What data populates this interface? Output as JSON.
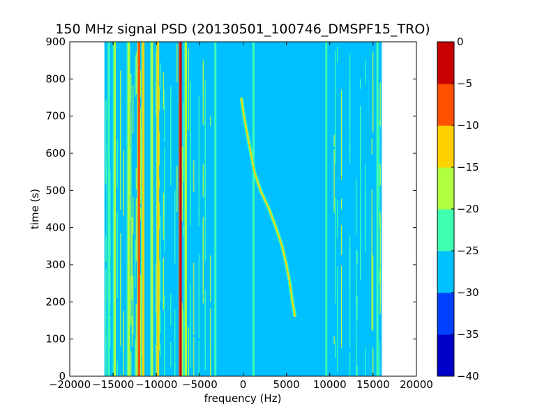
{
  "chart_data": {
    "type": "heatmap",
    "title": "150 MHz signal PSD (20130501_100746_DMSPF15_TRO)",
    "xlabel": "frequency (Hz)",
    "ylabel": "time (s)",
    "xlim": [
      -20000,
      20000
    ],
    "ylim": [
      0,
      900
    ],
    "x_ticks": [
      -20000,
      -15000,
      -10000,
      -5000,
      0,
      5000,
      10000,
      15000,
      20000
    ],
    "y_ticks": [
      0,
      100,
      200,
      300,
      400,
      500,
      600,
      700,
      800,
      900
    ],
    "x_tick_labels": [
      "−20000",
      "−15000",
      "−10000",
      "−5000",
      "0",
      "5000",
      "10000",
      "15000",
      "20000"
    ],
    "y_tick_labels": [
      "0",
      "100",
      "200",
      "300",
      "400",
      "500",
      "600",
      "700",
      "800",
      "900"
    ],
    "colorbar": {
      "levels": [
        -40,
        -35,
        -30,
        -25,
        -20,
        -15,
        -10,
        -5,
        0
      ],
      "tick_labels": [
        "−40",
        "−35",
        "−30",
        "−25",
        "−20",
        "−15",
        "−10",
        "−5",
        "0"
      ],
      "colors": [
        "#0000c8",
        "#0040ff",
        "#00c0ff",
        "#40ffb0",
        "#b0ff40",
        "#ffd000",
        "#ff5000",
        "#c80000"
      ]
    },
    "data_region": {
      "x_range": [
        -16000,
        16000
      ],
      "t_range": [
        0,
        900
      ],
      "background_level": -27.5
    },
    "bands": [
      {
        "x_range": [
          -16000,
          -3000
        ],
        "description": "noisy multi-line band",
        "dominant_levels": [
          -27.5,
          -22.5,
          -17.5
        ]
      },
      {
        "x_range": [
          9500,
          16000
        ],
        "description": "broadband noise band",
        "dominant_levels": [
          -27.5,
          -22.5,
          -17.5
        ]
      }
    ],
    "persistent_lines": [
      {
        "x": -7200,
        "level": -2.5
      },
      {
        "x": -12000,
        "level": -7.5
      },
      {
        "x": -11500,
        "level": -12.5
      },
      {
        "x": -9800,
        "level": -12.5
      },
      {
        "x": -6600,
        "level": -17.5
      },
      {
        "x": -10500,
        "level": -17.5
      },
      {
        "x": -13200,
        "level": -17.5
      },
      {
        "x": -14800,
        "level": -17.5
      },
      {
        "x": -15500,
        "level": -22.5
      },
      {
        "x": -3200,
        "level": -22.5
      },
      {
        "x": 1200,
        "level": -22.5
      },
      {
        "x": 9600,
        "level": -22.5
      },
      {
        "x": 15500,
        "level": -22.5
      }
    ],
    "doppler_trace": {
      "level": -12.5,
      "points": [
        {
          "t": 160,
          "f": 6000
        },
        {
          "t": 200,
          "f": 5700
        },
        {
          "t": 250,
          "f": 5400
        },
        {
          "t": 300,
          "f": 5000
        },
        {
          "t": 350,
          "f": 4500
        },
        {
          "t": 400,
          "f": 3800
        },
        {
          "t": 450,
          "f": 3000
        },
        {
          "t": 500,
          "f": 2000
        },
        {
          "t": 550,
          "f": 1300
        },
        {
          "t": 600,
          "f": 900
        },
        {
          "t": 650,
          "f": 500
        },
        {
          "t": 700,
          "f": 100
        },
        {
          "t": 750,
          "f": -200
        }
      ]
    }
  }
}
